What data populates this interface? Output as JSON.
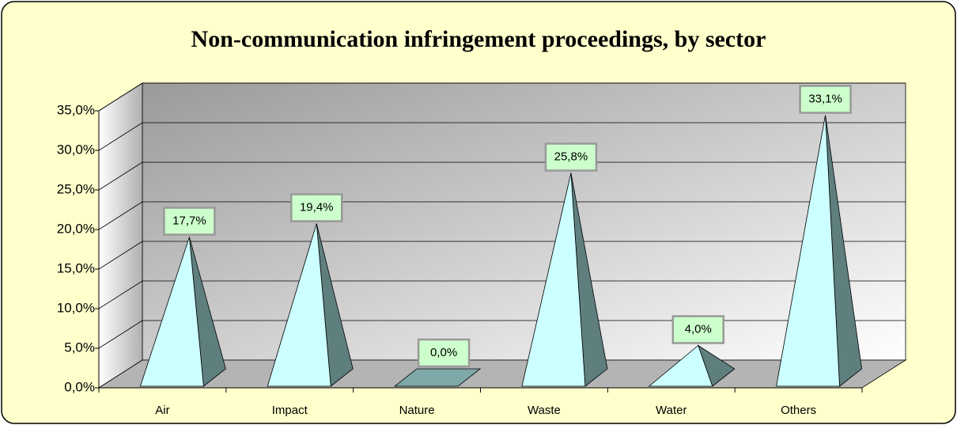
{
  "chart_data": {
    "type": "pyramid3d",
    "title": "Non-communication infringement proceedings, by sector",
    "categories": [
      "Air",
      "Impact",
      "Nature",
      "Waste",
      "Water",
      "Others"
    ],
    "values": [
      17.7,
      19.4,
      0.0,
      25.8,
      4.0,
      33.1
    ],
    "value_labels": [
      "17,7%",
      "19,4%",
      "0,0%",
      "25,8%",
      "4,0%",
      "33,1%"
    ],
    "color": "#ccffff",
    "ylim": [
      0,
      35
    ],
    "yticks": [
      {
        "value": 0,
        "label": "0,0%"
      },
      {
        "value": 5,
        "label": "5,0%"
      },
      {
        "value": 10,
        "label": "10,0%"
      },
      {
        "value": 15,
        "label": "15,0%"
      },
      {
        "value": 20,
        "label": "20,0%"
      },
      {
        "value": 25,
        "label": "25,0%"
      },
      {
        "value": 30,
        "label": "30,0%"
      },
      {
        "value": 35,
        "label": "35,0%"
      }
    ],
    "grid": true
  }
}
